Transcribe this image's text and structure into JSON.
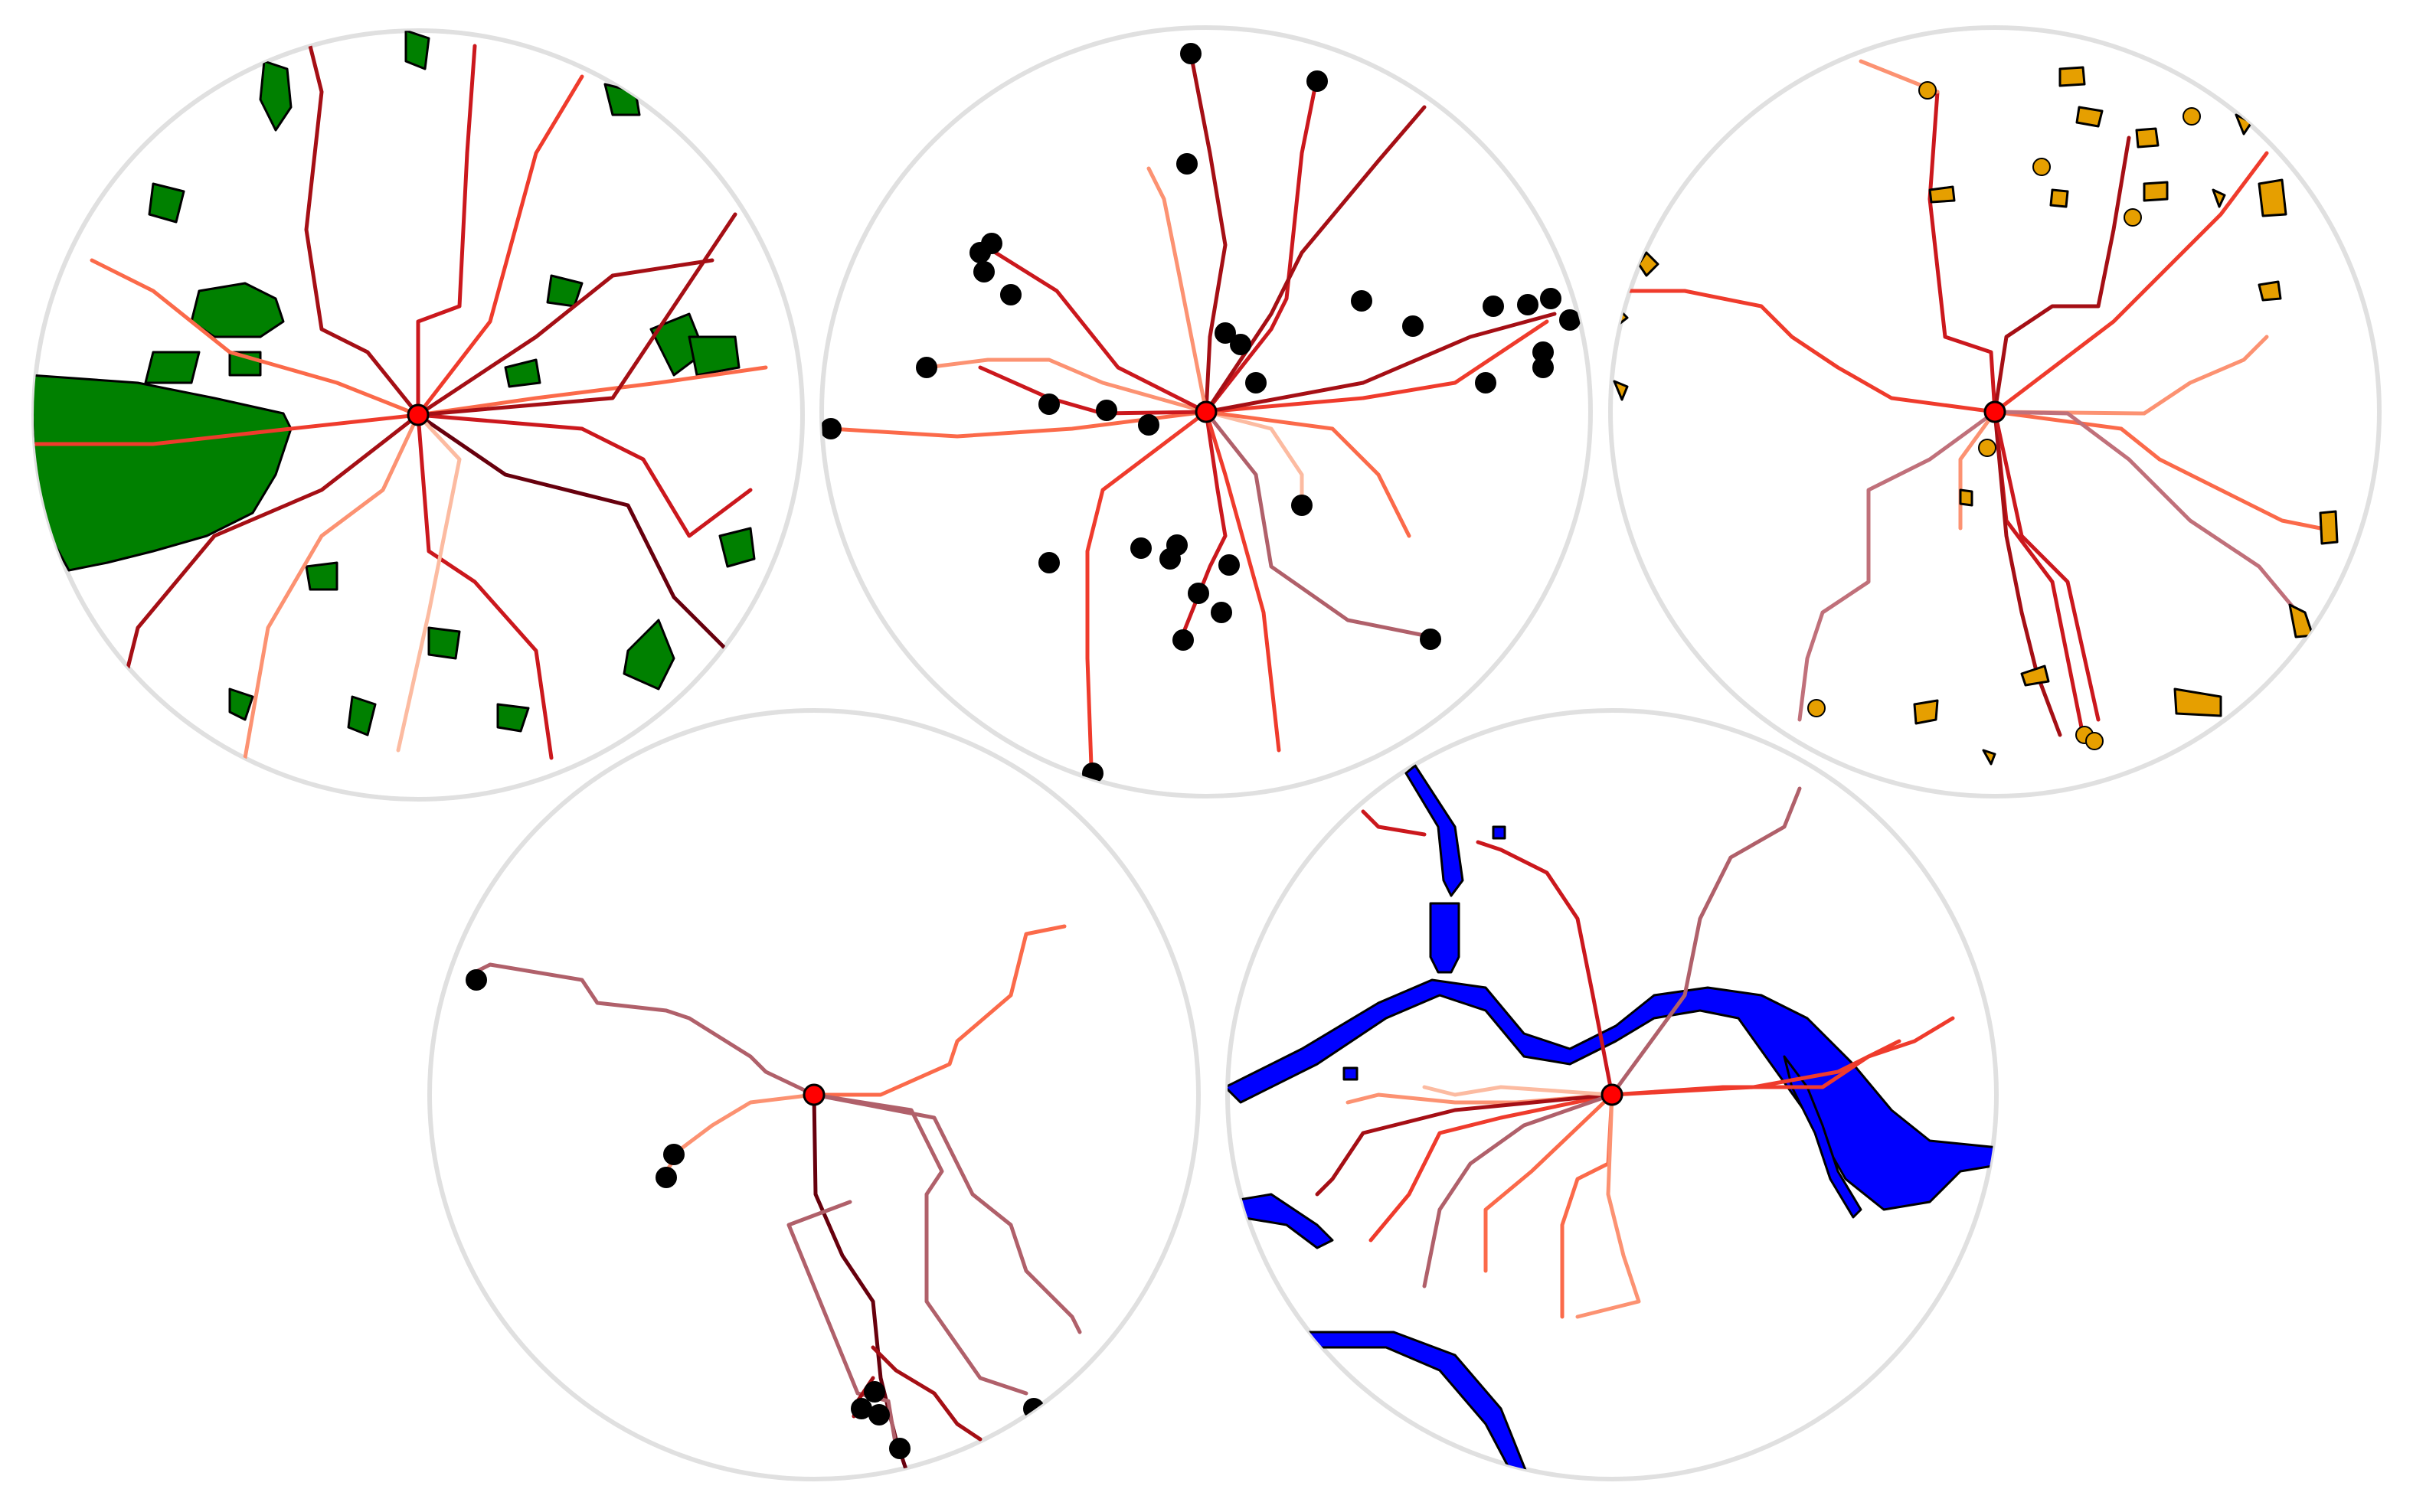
{
  "panels": [
    {
      "id": "parks",
      "feature": "parks",
      "feature_color": "#008000",
      "feature_count": "many",
      "origin_color": "#ff0000",
      "route_palette": [
        "#fcbba1",
        "#fc9272",
        "#fb6a4a",
        "#ef3b2c",
        "#cb181d",
        "#a50f15",
        "#67000d"
      ]
    },
    {
      "id": "points",
      "feature": "points",
      "feature_color": "#000000",
      "origin_color": "#ff0000",
      "route_palette": [
        "#fcbba1",
        "#fc9272",
        "#fb6a4a",
        "#ef3b2c",
        "#cb181d",
        "#a50f15",
        "#b0606a"
      ]
    },
    {
      "id": "buildings",
      "feature": "polygons",
      "feature_color": "#e69f00",
      "origin_color": "#ff0000",
      "route_palette": [
        "#fc9272",
        "#fb6a4a",
        "#ef3b2c",
        "#cb181d",
        "#a50f15",
        "#c0707a"
      ]
    },
    {
      "id": "sparse-points",
      "feature": "points",
      "feature_color": "#000000",
      "origin_color": "#ff0000",
      "route_palette": [
        "#fc9272",
        "#fb6a4a",
        "#a50f15",
        "#b0606a",
        "#67000d"
      ]
    },
    {
      "id": "water",
      "feature": "water",
      "feature_color": "#0000ff",
      "origin_color": "#ff0000",
      "route_palette": [
        "#fcbba1",
        "#fc9272",
        "#fb6a4a",
        "#ef3b2c",
        "#cb181d",
        "#a50f15",
        "#b0606a"
      ]
    }
  ]
}
